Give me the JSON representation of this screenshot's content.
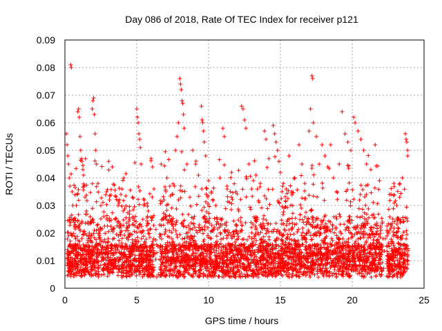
{
  "chart_data": {
    "type": "scatter",
    "title": "Day 086 of 2018, Rate Of TEC Index for receiver p121",
    "xlabel": "GPS time / hours",
    "ylabel": "ROTI / TECUs",
    "xlim": [
      0,
      25
    ],
    "ylim": [
      0,
      0.09
    ],
    "x_ticks": [
      "0",
      "5",
      "10",
      "15",
      "20",
      "25"
    ],
    "y_ticks": [
      "0",
      "0.01",
      "0.02",
      "0.03",
      "0.04",
      "0.05",
      "0.06",
      "0.07",
      "0.08",
      "0.09"
    ],
    "grid": true,
    "marker": "plus",
    "color": "#ff0000",
    "series": [
      {
        "values_note": "",
        "points": [
          [
            0.1,
            0.056
          ],
          [
            0.15,
            0.052
          ],
          [
            0.2,
            0.048
          ],
          [
            0.25,
            0.045
          ],
          [
            0.3,
            0.04
          ],
          [
            0.35,
            0.037
          ],
          [
            0.4,
            0.081
          ],
          [
            0.45,
            0.08
          ],
          [
            0.5,
            0.035
          ],
          [
            0.55,
            0.03
          ],
          [
            0.6,
            0.025
          ],
          [
            0.7,
            0.022
          ],
          [
            0.8,
            0.03
          ],
          [
            0.9,
            0.064
          ],
          [
            0.95,
            0.065
          ],
          [
            1.0,
            0.062
          ],
          [
            1.05,
            0.055
          ],
          [
            1.1,
            0.05
          ],
          [
            1.15,
            0.047
          ],
          [
            1.2,
            0.046
          ],
          [
            1.25,
            0.043
          ],
          [
            1.3,
            0.041
          ],
          [
            1.35,
            0.037
          ],
          [
            1.4,
            0.033
          ],
          [
            1.5,
            0.028
          ],
          [
            1.6,
            0.024
          ],
          [
            1.7,
            0.02
          ],
          [
            1.8,
            0.017
          ],
          [
            1.9,
            0.065
          ],
          [
            1.95,
            0.068
          ],
          [
            2.0,
            0.069
          ],
          [
            2.05,
            0.063
          ],
          [
            2.1,
            0.056
          ],
          [
            2.15,
            0.05
          ],
          [
            2.2,
            0.045
          ],
          [
            2.3,
            0.038
          ],
          [
            2.5,
            0.03
          ],
          [
            2.7,
            0.026
          ],
          [
            2.9,
            0.035
          ],
          [
            3.1,
            0.032
          ],
          [
            3.3,
            0.044
          ],
          [
            3.5,
            0.025
          ],
          [
            3.7,
            0.03
          ],
          [
            3.9,
            0.034
          ],
          [
            4.1,
            0.04
          ],
          [
            4.3,
            0.022
          ],
          [
            4.5,
            0.028
          ],
          [
            4.7,
            0.033
          ],
          [
            4.9,
            0.026
          ],
          [
            5.0,
            0.065
          ],
          [
            5.05,
            0.062
          ],
          [
            5.1,
            0.06
          ],
          [
            5.15,
            0.056
          ],
          [
            5.2,
            0.054
          ],
          [
            5.25,
            0.051
          ],
          [
            5.3,
            0.045
          ],
          [
            5.5,
            0.03
          ],
          [
            5.8,
            0.028
          ],
          [
            6.0,
            0.047
          ],
          [
            6.1,
            0.044
          ],
          [
            6.2,
            0.036
          ],
          [
            6.5,
            0.005
          ],
          [
            6.7,
            0.045
          ],
          [
            6.9,
            0.032
          ],
          [
            7.1,
            0.04
          ],
          [
            7.3,
            0.037
          ],
          [
            7.5,
            0.034
          ],
          [
            7.7,
            0.05
          ],
          [
            7.8,
            0.055
          ],
          [
            7.9,
            0.06
          ],
          [
            8.0,
            0.076
          ],
          [
            8.05,
            0.074
          ],
          [
            8.1,
            0.072
          ],
          [
            8.15,
            0.068
          ],
          [
            8.2,
            0.067
          ],
          [
            8.25,
            0.063
          ],
          [
            8.3,
            0.058
          ],
          [
            8.5,
            0.045
          ],
          [
            8.7,
            0.033
          ],
          [
            8.9,
            0.05
          ],
          [
            9.1,
            0.045
          ],
          [
            9.3,
            0.041
          ],
          [
            9.5,
            0.066
          ],
          [
            9.55,
            0.061
          ],
          [
            9.6,
            0.06
          ],
          [
            9.65,
            0.057
          ],
          [
            9.7,
            0.053
          ],
          [
            9.8,
            0.048
          ],
          [
            10.0,
            0.039
          ],
          [
            10.2,
            0.035
          ],
          [
            10.5,
            0.03
          ],
          [
            10.8,
            0.04
          ],
          [
            11.0,
            0.058
          ],
          [
            11.1,
            0.055
          ],
          [
            11.3,
            0.036
          ],
          [
            11.6,
            0.042
          ],
          [
            11.9,
            0.035
          ],
          [
            12.1,
            0.028
          ],
          [
            12.3,
            0.066
          ],
          [
            12.4,
            0.065
          ],
          [
            12.5,
            0.061
          ],
          [
            12.6,
            0.058
          ],
          [
            12.8,
            0.045
          ],
          [
            13.0,
            0.036
          ],
          [
            13.3,
            0.041
          ],
          [
            13.6,
            0.038
          ],
          [
            13.9,
            0.057
          ],
          [
            14.0,
            0.054
          ],
          [
            14.2,
            0.047
          ],
          [
            14.5,
            0.059
          ],
          [
            14.6,
            0.056
          ],
          [
            14.7,
            0.053
          ],
          [
            14.8,
            0.05
          ],
          [
            14.9,
            0.046
          ],
          [
            15.0,
            0.042
          ],
          [
            15.2,
            0.038
          ],
          [
            15.4,
            0.036
          ],
          [
            15.6,
            0.048
          ],
          [
            15.8,
            0.035
          ],
          [
            16.0,
            0.04
          ],
          [
            16.3,
            0.052
          ],
          [
            16.5,
            0.045
          ],
          [
            16.7,
            0.038
          ],
          [
            17.0,
            0.057
          ],
          [
            17.1,
            0.065
          ],
          [
            17.2,
            0.077
          ],
          [
            17.25,
            0.076
          ],
          [
            17.3,
            0.06
          ],
          [
            17.5,
            0.055
          ],
          [
            17.7,
            0.045
          ],
          [
            17.9,
            0.052
          ],
          [
            18.1,
            0.048
          ],
          [
            18.3,
            0.044
          ],
          [
            18.5,
            0.052
          ],
          [
            18.7,
            0.04
          ],
          [
            18.9,
            0.035
          ],
          [
            19.1,
            0.045
          ],
          [
            19.3,
            0.064
          ],
          [
            19.5,
            0.056
          ],
          [
            19.7,
            0.053
          ],
          [
            19.9,
            0.05
          ],
          [
            20.1,
            0.062
          ],
          [
            20.2,
            0.06
          ],
          [
            20.4,
            0.057
          ],
          [
            20.6,
            0.054
          ],
          [
            20.8,
            0.05
          ],
          [
            21.0,
            0.045
          ],
          [
            21.3,
            0.043
          ],
          [
            21.6,
            0.052
          ],
          [
            21.9,
            0.039
          ],
          [
            22.3,
            0.018
          ],
          [
            22.6,
            0.034
          ],
          [
            22.9,
            0.038
          ],
          [
            23.1,
            0.03
          ],
          [
            23.3,
            0.033
          ],
          [
            23.5,
            0.04
          ],
          [
            23.7,
            0.056
          ],
          [
            23.75,
            0.054
          ],
          [
            23.8,
            0.053
          ],
          [
            23.85,
            0.05
          ]
        ]
      }
    ]
  }
}
